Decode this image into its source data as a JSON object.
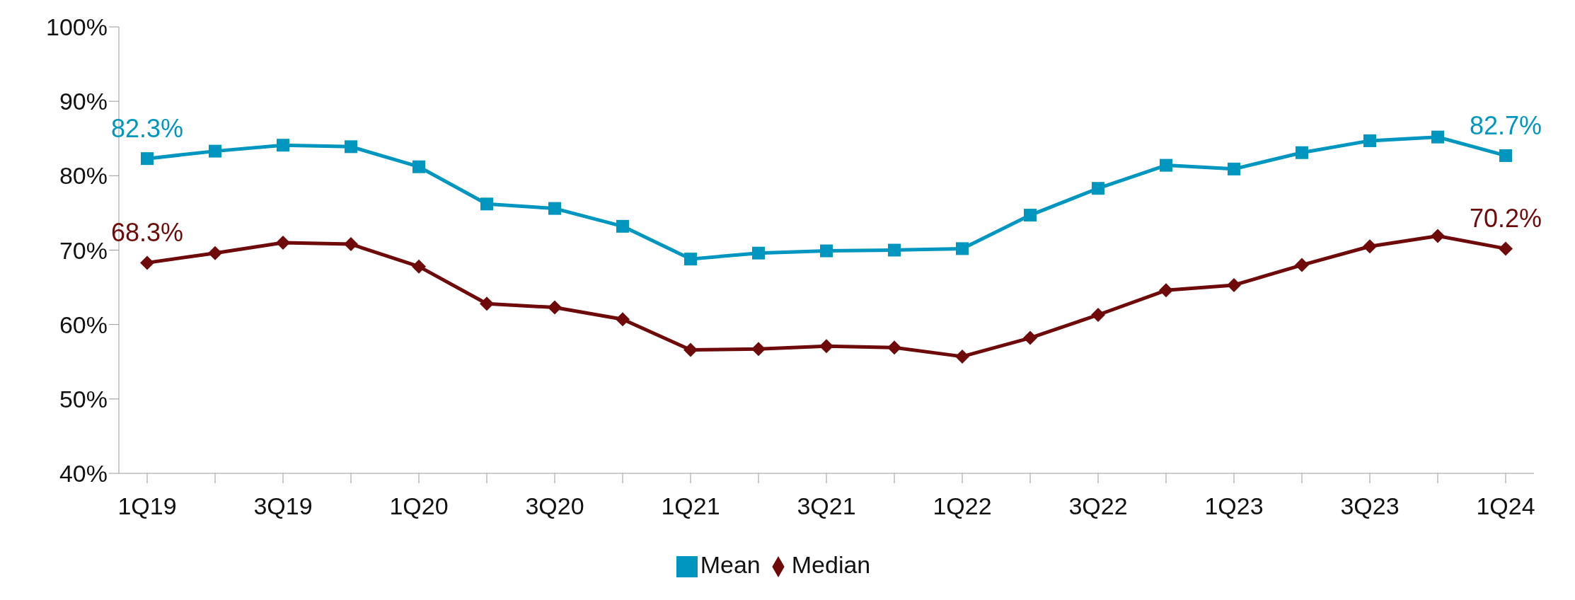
{
  "chart_data": {
    "type": "line",
    "categories": [
      "1Q19",
      null,
      "3Q19",
      null,
      "1Q20",
      null,
      "3Q20",
      null,
      "1Q21",
      null,
      "3Q21",
      null,
      "1Q22",
      null,
      "3Q22",
      null,
      "1Q23",
      null,
      "3Q23",
      null,
      "1Q24"
    ],
    "series": [
      {
        "name": "Mean",
        "color": "#0096bf",
        "marker": "square",
        "values": [
          82.3,
          83.3,
          84.1,
          83.9,
          81.2,
          76.2,
          75.6,
          73.2,
          68.8,
          69.6,
          69.9,
          70.0,
          70.2,
          74.7,
          78.3,
          81.4,
          80.9,
          83.1,
          84.7,
          85.2,
          82.7
        ],
        "value_labels": [
          "82.3%",
          null,
          null,
          null,
          null,
          null,
          null,
          null,
          null,
          null,
          null,
          null,
          null,
          null,
          null,
          null,
          null,
          null,
          null,
          null,
          "82.7%"
        ]
      },
      {
        "name": "Median",
        "color": "#6e0a0a",
        "marker": "diamond",
        "values": [
          68.3,
          69.6,
          71.0,
          70.8,
          67.8,
          62.8,
          62.3,
          60.7,
          56.6,
          56.7,
          57.1,
          56.9,
          55.7,
          58.2,
          61.3,
          64.6,
          65.3,
          68.0,
          70.5,
          71.9,
          70.2
        ],
        "value_labels": [
          "68.3%",
          null,
          null,
          null,
          null,
          null,
          null,
          null,
          null,
          null,
          null,
          null,
          null,
          null,
          null,
          null,
          null,
          null,
          null,
          null,
          "70.2%"
        ]
      }
    ],
    "ylim": [
      40,
      100
    ],
    "yticks": [
      {
        "value": 40,
        "label": "40%"
      },
      {
        "value": 50,
        "label": "50%"
      },
      {
        "value": 60,
        "label": "60%"
      },
      {
        "value": 70,
        "label": "70%"
      },
      {
        "value": 80,
        "label": "80%"
      },
      {
        "value": 90,
        "label": "90%"
      },
      {
        "value": 100,
        "label": "100%"
      }
    ],
    "grid": false,
    "legend": "bottom",
    "line_style": "solid"
  }
}
